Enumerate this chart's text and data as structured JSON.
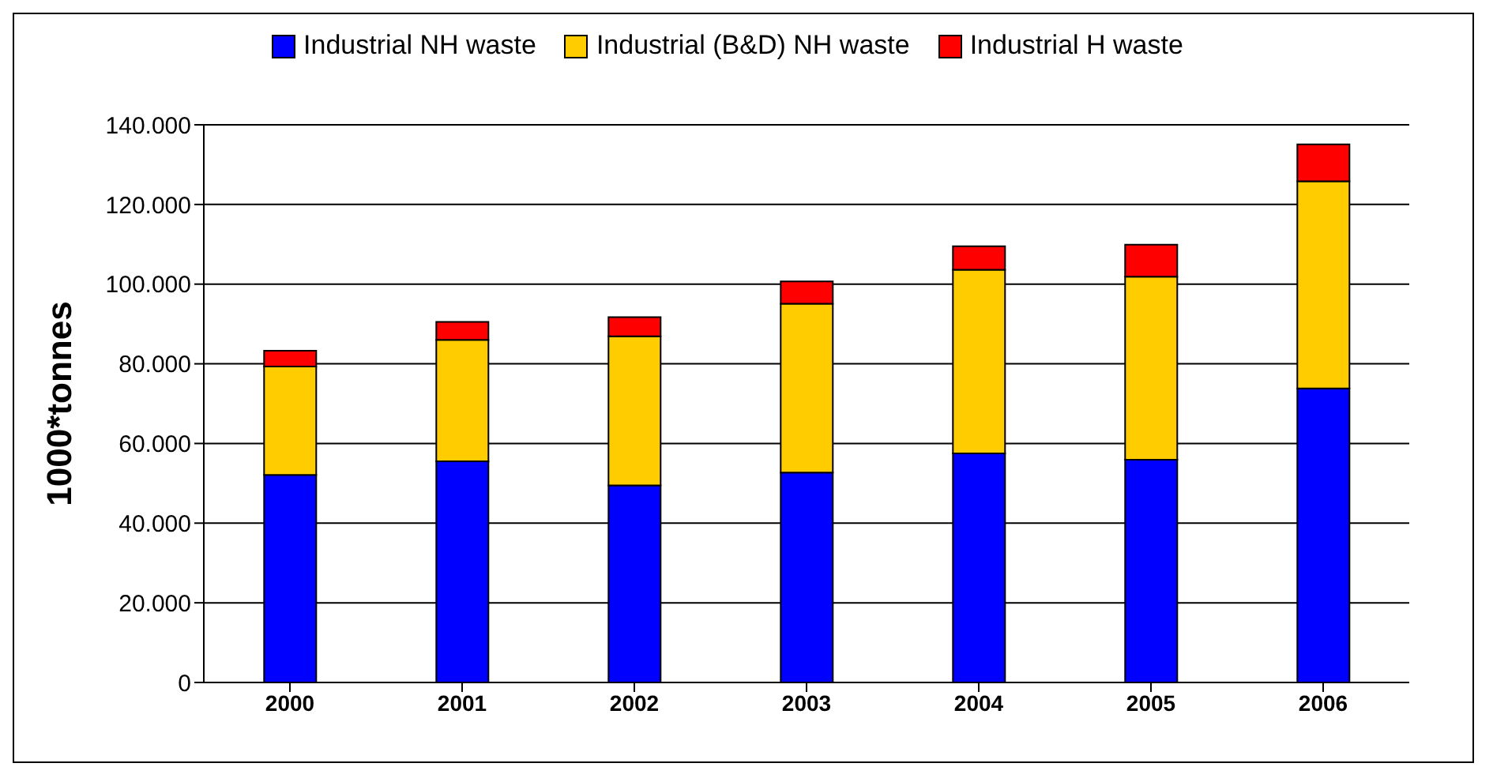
{
  "chart_data": {
    "type": "bar",
    "stacked": true,
    "ylabel": "1000*tonnes",
    "categories": [
      "2000",
      "2001",
      "2002",
      "2003",
      "2004",
      "2005",
      "2006"
    ],
    "series": [
      {
        "name": "Industrial NH waste",
        "color": "#0000ff",
        "values": [
          52100,
          55500,
          49500,
          52700,
          57500,
          55900,
          73800
        ]
      },
      {
        "name": "Industrial (B&D) NH waste",
        "color": "#ffcc00",
        "values": [
          27200,
          30500,
          37400,
          42400,
          46100,
          46000,
          52000
        ]
      },
      {
        "name": "Industrial H waste",
        "color": "#ff0000",
        "values": [
          4000,
          4500,
          4800,
          5600,
          5900,
          8000,
          9300
        ]
      }
    ],
    "ylim": [
      0,
      140000
    ],
    "yticks": [
      0,
      {
        "value": 20000,
        "label": "20.000"
      },
      {
        "value": 40000,
        "label": "40.000"
      },
      {
        "value": 60000,
        "label": "60.000"
      },
      {
        "value": 80000,
        "label": "80.000"
      },
      {
        "value": 100000,
        "label": "100.000"
      },
      {
        "value": 120000,
        "label": "120.000"
      },
      {
        "value": 140000,
        "label": "140.000"
      }
    ],
    "grid": "y",
    "legend": "top"
  }
}
